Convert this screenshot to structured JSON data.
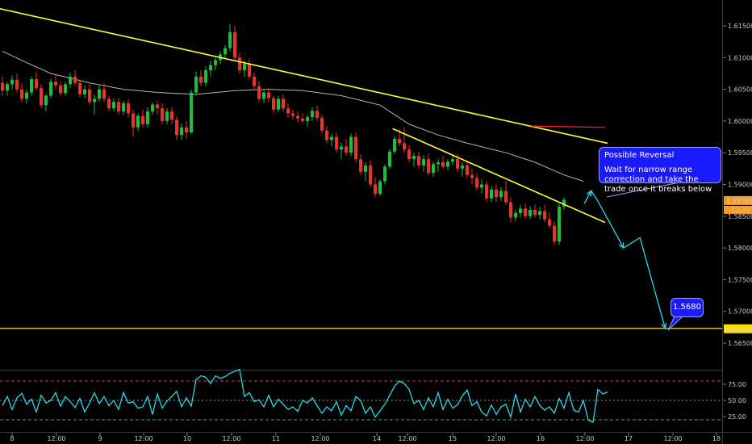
{
  "chart_data": [
    {
      "type": "candlestick",
      "ylim": [
        1.5595,
        1.6165
      ],
      "y_ticks": [
        "1.61500",
        "1.61000",
        "1.60500",
        "1.60000",
        "1.59500",
        "1.59000",
        "1.58500",
        "1.58000",
        "1.57500",
        "1.57000",
        "1.56500"
      ],
      "x_ticks": [
        "8",
        "12:00",
        "9",
        "12:00",
        "10",
        "12:00",
        "11",
        "12:00",
        "14",
        "12:00",
        "15",
        "12:00",
        "16",
        "12:00",
        "17",
        "12:00",
        "18"
      ],
      "last_price_label": "1.58768",
      "countdown_label": "22:33",
      "target_price_label": "1.56732",
      "colors": {
        "up": "#1fbf3a",
        "down": "#e8342a",
        "trendline": "#ffff33",
        "ma": "#b4b4b4",
        "resistance": "#ff2020",
        "projection": "#2ad8e8",
        "price_tag": "#ff9a1a",
        "target_tag": "#ffe000",
        "callout": "#1a1aff"
      },
      "candles": [
        [
          1.606,
          1.607,
          1.604,
          1.6048
        ],
        [
          1.6048,
          1.6062,
          1.604,
          1.6058
        ],
        [
          1.6058,
          1.6072,
          1.605,
          1.6065
        ],
        [
          1.6065,
          1.6075,
          1.6045,
          1.605
        ],
        [
          1.605,
          1.606,
          1.603,
          1.6035
        ],
        [
          1.6035,
          1.605,
          1.6028,
          1.6045
        ],
        [
          1.6045,
          1.607,
          1.604,
          1.6066
        ],
        [
          1.6066,
          1.6078,
          1.6048,
          1.6052
        ],
        [
          1.6052,
          1.6058,
          1.602,
          1.6025
        ],
        [
          1.6025,
          1.6042,
          1.6015,
          1.604
        ],
        [
          1.604,
          1.6066,
          1.6036,
          1.6062
        ],
        [
          1.6062,
          1.6073,
          1.605,
          1.6056
        ],
        [
          1.6056,
          1.6062,
          1.604,
          1.6044
        ],
        [
          1.6044,
          1.6062,
          1.604,
          1.6058
        ],
        [
          1.6058,
          1.6076,
          1.6052,
          1.607
        ],
        [
          1.607,
          1.608,
          1.6055,
          1.606
        ],
        [
          1.606,
          1.6066,
          1.6038,
          1.6042
        ],
        [
          1.6042,
          1.6056,
          1.6036,
          1.605
        ],
        [
          1.605,
          1.6058,
          1.6025,
          1.603
        ],
        [
          1.603,
          1.6042,
          1.601,
          1.6035
        ],
        [
          1.6035,
          1.6056,
          1.603,
          1.605
        ],
        [
          1.605,
          1.606,
          1.603,
          1.6035
        ],
        [
          1.6035,
          1.604,
          1.6015,
          1.602
        ],
        [
          1.602,
          1.6036,
          1.6015,
          1.603
        ],
        [
          1.603,
          1.6036,
          1.601,
          1.6015
        ],
        [
          1.6015,
          1.6032,
          1.601,
          1.6028
        ],
        [
          1.6028,
          1.6034,
          1.6005,
          1.6012
        ],
        [
          1.6012,
          1.6018,
          1.5975,
          1.599
        ],
        [
          1.599,
          1.6012,
          1.5984,
          1.6008
        ],
        [
          1.6008,
          1.6018,
          1.599,
          1.5995
        ],
        [
          1.5995,
          1.6022,
          1.599,
          1.6015
        ],
        [
          1.6015,
          1.603,
          1.601,
          1.6026
        ],
        [
          1.6026,
          1.6032,
          1.601,
          1.602
        ],
        [
          1.602,
          1.6028,
          1.5995,
          1.6
        ],
        [
          1.6,
          1.602,
          1.5995,
          1.6015
        ],
        [
          1.6015,
          1.6022,
          1.5995,
          1.6002
        ],
        [
          1.6002,
          1.6008,
          1.597,
          1.5978
        ],
        [
          1.5978,
          1.5996,
          1.597,
          1.599
        ],
        [
          1.599,
          1.6,
          1.5972,
          1.5982
        ],
        [
          1.5982,
          1.605,
          1.598,
          1.6045
        ],
        [
          1.6045,
          1.6078,
          1.604,
          1.607
        ],
        [
          1.607,
          1.608,
          1.6055,
          1.606
        ],
        [
          1.606,
          1.6086,
          1.6054,
          1.608
        ],
        [
          1.608,
          1.6095,
          1.607,
          1.6088
        ],
        [
          1.6088,
          1.61,
          1.608,
          1.6096
        ],
        [
          1.6096,
          1.611,
          1.609,
          1.6105
        ],
        [
          1.6105,
          1.612,
          1.6098,
          1.6115
        ],
        [
          1.6115,
          1.6153,
          1.611,
          1.614
        ],
        [
          1.614,
          1.615,
          1.6095,
          1.61
        ],
        [
          1.61,
          1.6108,
          1.6075,
          1.608
        ],
        [
          1.608,
          1.6096,
          1.607,
          1.609
        ],
        [
          1.609,
          1.6098,
          1.6065,
          1.607
        ],
        [
          1.607,
          1.6076,
          1.6048,
          1.6055
        ],
        [
          1.6055,
          1.6064,
          1.603,
          1.6035
        ],
        [
          1.6035,
          1.605,
          1.6028,
          1.6045
        ],
        [
          1.6045,
          1.6052,
          1.603,
          1.6036
        ],
        [
          1.6036,
          1.604,
          1.6012,
          1.6018
        ],
        [
          1.6018,
          1.604,
          1.6014,
          1.6035
        ],
        [
          1.6035,
          1.6042,
          1.6015,
          1.602
        ],
        [
          1.602,
          1.6028,
          1.6005,
          1.6012
        ],
        [
          1.6012,
          1.6018,
          1.6002,
          1.6008
        ],
        [
          1.6008,
          1.6016,
          1.5998,
          1.6004
        ],
        [
          1.6004,
          1.6012,
          1.5996,
          1.6
        ],
        [
          1.6,
          1.601,
          1.599,
          1.6006
        ],
        [
          1.6006,
          1.6022,
          1.6,
          1.6016
        ],
        [
          1.6016,
          1.6024,
          1.6,
          1.6005
        ],
        [
          1.6005,
          1.601,
          1.598,
          1.5985
        ],
        [
          1.5985,
          1.5992,
          1.5965,
          1.597
        ],
        [
          1.597,
          1.598,
          1.596,
          1.5975
        ],
        [
          1.5975,
          1.5982,
          1.595,
          1.5955
        ],
        [
          1.5955,
          1.5966,
          1.594,
          1.596
        ],
        [
          1.596,
          1.5972,
          1.5945,
          1.595
        ],
        [
          1.595,
          1.598,
          1.5945,
          1.5975
        ],
        [
          1.5975,
          1.5982,
          1.5935,
          1.594
        ],
        [
          1.594,
          1.5948,
          1.5915,
          1.592
        ],
        [
          1.592,
          1.5935,
          1.5905,
          1.593
        ],
        [
          1.593,
          1.5938,
          1.5895,
          1.59
        ],
        [
          1.59,
          1.5912,
          1.588,
          1.5885
        ],
        [
          1.5885,
          1.5908,
          1.5882,
          1.5905
        ],
        [
          1.5905,
          1.5932,
          1.59,
          1.5928
        ],
        [
          1.5928,
          1.5956,
          1.5924,
          1.5952
        ],
        [
          1.5952,
          1.5976,
          1.5948,
          1.5972
        ],
        [
          1.5972,
          1.5988,
          1.596,
          1.5965
        ],
        [
          1.5965,
          1.599,
          1.595,
          1.5955
        ],
        [
          1.5955,
          1.5962,
          1.5935,
          1.594
        ],
        [
          1.594,
          1.595,
          1.5928,
          1.5945
        ],
        [
          1.5945,
          1.5952,
          1.5925,
          1.593
        ],
        [
          1.593,
          1.5946,
          1.592,
          1.594
        ],
        [
          1.594,
          1.5948,
          1.5914,
          1.5918
        ],
        [
          1.5918,
          1.5936,
          1.5912,
          1.5932
        ],
        [
          1.5932,
          1.594,
          1.592,
          1.5935
        ],
        [
          1.5935,
          1.5944,
          1.5925,
          1.5928
        ],
        [
          1.5928,
          1.594,
          1.5922,
          1.5936
        ],
        [
          1.5936,
          1.5946,
          1.593,
          1.594
        ],
        [
          1.594,
          1.5948,
          1.592,
          1.5925
        ],
        [
          1.5925,
          1.5935,
          1.5912,
          1.593
        ],
        [
          1.593,
          1.5936,
          1.591,
          1.5915
        ],
        [
          1.5915,
          1.5925,
          1.59,
          1.591
        ],
        [
          1.591,
          1.5918,
          1.589,
          1.5895
        ],
        [
          1.5895,
          1.5908,
          1.5885,
          1.59
        ],
        [
          1.59,
          1.5906,
          1.5872,
          1.5878
        ],
        [
          1.5878,
          1.5898,
          1.5872,
          1.5892
        ],
        [
          1.5892,
          1.59,
          1.5872,
          1.588
        ],
        [
          1.588,
          1.5896,
          1.5874,
          1.589
        ],
        [
          1.589,
          1.5906,
          1.5868,
          1.5872
        ],
        [
          1.5872,
          1.588,
          1.584,
          1.5848
        ],
        [
          1.5848,
          1.586,
          1.5842,
          1.5855
        ],
        [
          1.5855,
          1.5868,
          1.5848,
          1.5862
        ],
        [
          1.5862,
          1.587,
          1.5846,
          1.585
        ],
        [
          1.585,
          1.5866,
          1.5845,
          1.586
        ],
        [
          1.586,
          1.5868,
          1.5848,
          1.5852
        ],
        [
          1.5852,
          1.5865,
          1.5845,
          1.5858
        ],
        [
          1.5858,
          1.5868,
          1.584,
          1.5845
        ],
        [
          1.5845,
          1.5856,
          1.583,
          1.5835
        ],
        [
          1.5835,
          1.5842,
          1.5805,
          1.581
        ],
        [
          1.581,
          1.587,
          1.5805,
          1.5865
        ],
        [
          1.5865,
          1.588,
          1.586,
          1.5876
        ]
      ],
      "moving_average": [
        [
          0,
          1.611
        ],
        [
          5,
          1.6092
        ],
        [
          10,
          1.6075
        ],
        [
          18,
          1.606
        ],
        [
          25,
          1.605
        ],
        [
          32,
          1.6045
        ],
        [
          40,
          1.6042
        ],
        [
          48,
          1.6048
        ],
        [
          55,
          1.605
        ],
        [
          62,
          1.6048
        ],
        [
          70,
          1.604
        ],
        [
          78,
          1.6025
        ],
        [
          84,
          1.5995
        ],
        [
          90,
          1.5978
        ],
        [
          96,
          1.5965
        ],
        [
          104,
          1.595
        ],
        [
          110,
          1.5935
        ],
        [
          116,
          1.5915
        ],
        [
          120,
          1.5905
        ]
      ],
      "trendlines": [
        {
          "from": [
            -3.5,
            1.6182
          ],
          "to": [
            125,
            1.5965
          ]
        },
        {
          "from": [
            80.6,
            1.5988
          ],
          "to": [
            124.5,
            1.584
          ]
        }
      ],
      "resistance_level": {
        "from": [
          109.3,
          1.5992
        ],
        "to": [
          124.5,
          1.599
        ]
      },
      "target_level": 1.56732,
      "projection_path": [
        [
          120.2,
          1.587
        ],
        [
          121.6,
          1.589
        ],
        [
          122.9,
          1.5875
        ],
        [
          128.3,
          1.58
        ],
        [
          131.7,
          1.5816
        ],
        [
          136.9,
          1.56732
        ]
      ],
      "annotations": [
        {
          "title": "Possible Reversal",
          "text": "Wait for narrow range correction and take the trade once it breaks below"
        },
        {
          "title": "1.5680",
          "text": ""
        }
      ]
    },
    {
      "type": "line",
      "ylim": [
        12,
        102
      ],
      "y_ticks": [
        "75.00",
        "50.00",
        "25.00"
      ],
      "levels": {
        "overbought": 80,
        "mid": 50,
        "oversold": 20
      },
      "series": [
        {
          "values": [
            42,
            56,
            36,
            54,
            61,
            44,
            52,
            32,
            58,
            46,
            50,
            62,
            41,
            56,
            48,
            39,
            53,
            32,
            46,
            62,
            45,
            56,
            42,
            50,
            36,
            62,
            46,
            48,
            38,
            40,
            56,
            28,
            60,
            38,
            49,
            56,
            64,
            40,
            54,
            41,
            82,
            88,
            86,
            76,
            88,
            84,
            87,
            92,
            95,
            98,
            56,
            62,
            48,
            51,
            40,
            58,
            40,
            52,
            44,
            36,
            40,
            33,
            50,
            46,
            54,
            42,
            30,
            40,
            34,
            48,
            27,
            42,
            34,
            56,
            50,
            30,
            40,
            24,
            34,
            44,
            58,
            72,
            80,
            76,
            67,
            45,
            50,
            36,
            54,
            40,
            62,
            36,
            52,
            38,
            43,
            57,
            66,
            42,
            48,
            32,
            26,
            43,
            28,
            40,
            44,
            24,
            60,
            32,
            52,
            40,
            56,
            42,
            35,
            40,
            30,
            53,
            38,
            62,
            35,
            32,
            50,
            20,
            16,
            67,
            60,
            63
          ]
        }
      ]
    }
  ]
}
